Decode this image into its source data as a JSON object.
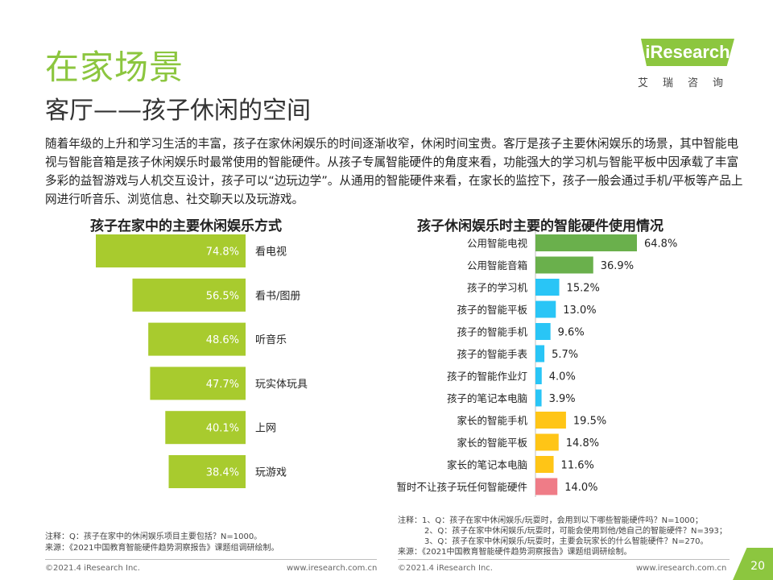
{
  "header": {
    "title": "在家场景",
    "subtitle": "客厅——孩子休闲的空间",
    "logo_text": "iResearch",
    "logo_cn": "艾瑞咨询"
  },
  "description": "随着年级的上升和学习生活的丰富，孩子在家休闲娱乐的时间逐渐收窄，休闲时间宝贵。客厅是孩子主要休闲娱乐的场景，其中智能电视与智能音箱是孩子休闲娱乐时最常使用的智能硬件。从孩子专属智能硬件的角度来看，功能强大的学习机与智能平板中因承载了丰富多彩的益智游戏与人机交互设计，孩子可以“边玩边学”。从通用的智能硬件来看，在家长的监控下，孩子一般会通过手机/平板等产品上网进行听音乐、浏览信息、社交聊天以及玩游戏。",
  "chart_data": [
    {
      "type": "bar",
      "orientation": "horizontal-funnel",
      "title": "孩子在家中的主要休闲娱乐方式",
      "categories": [
        "看电视",
        "看书/图册",
        "听音乐",
        "玩实体玩具",
        "上网",
        "玩游戏"
      ],
      "values": [
        74.8,
        56.5,
        48.6,
        47.7,
        40.1,
        38.4
      ],
      "value_labels": [
        "74.8%",
        "56.5%",
        "48.6%",
        "47.7%",
        "40.1%",
        "38.4%"
      ],
      "unit": "%",
      "color": "#a8cb2e"
    },
    {
      "type": "bar",
      "orientation": "horizontal",
      "title": "孩子休闲娱乐时主要的智能硬件使用情况",
      "categories": [
        "公用智能电视",
        "公用智能音箱",
        "孩子的学习机",
        "孩子的智能平板",
        "孩子的智能手机",
        "孩子的智能手表",
        "孩子的智能作业灯",
        "孩子的笔记本电脑",
        "家长的智能手机",
        "家长的智能平板",
        "家长的笔记本电脑",
        "暂时不让孩子玩任何智能硬件"
      ],
      "values": [
        64.8,
        36.9,
        15.2,
        13.0,
        9.6,
        5.7,
        4.0,
        3.9,
        19.5,
        14.8,
        11.6,
        14.0
      ],
      "value_labels": [
        "64.8%",
        "36.9%",
        "15.2%",
        "13.0%",
        "9.6%",
        "5.7%",
        "4.0%",
        "3.9%",
        "19.5%",
        "14.8%",
        "11.6%",
        "14.0%"
      ],
      "unit": "%",
      "colors": [
        "#6ab04c",
        "#6ab04c",
        "#29c5f6",
        "#29c5f6",
        "#29c5f6",
        "#29c5f6",
        "#29c5f6",
        "#29c5f6",
        "#ffc516",
        "#ffc516",
        "#ffc516",
        "#ef7c87"
      ]
    }
  ],
  "notes": {
    "left_note": "注释：Q：孩子在家中的休闲娱乐项目主要包括？N=1000。",
    "left_source": "来源：《2021中国教育智能硬件趋势洞察报告》课题组调研绘制。",
    "right_note_1": "注释：1、Q：孩子在家中休闲娱乐/玩耍时，会用到以下哪些智能硬件吗？N=1000；",
    "right_note_2": "2、Q：孩子在家中休闲娱乐/玩耍时，可能会使用到他/她自己的智能硬件？N=393；",
    "right_note_3": "3、Q：孩子在家中休闲娱乐/玩耍时，主要会玩家长的什么智能硬件？N=270。",
    "right_source": "来源：《2021中国教育智能硬件趋势洞察报告》课题组调研绘制。"
  },
  "footer": {
    "left_copyright": "©2021.4 iResearch Inc.",
    "left_url": "www.iresearch.com.cn",
    "right_copyright": "©2021.4 iResearch Inc.",
    "right_url": "www.iresearch.com.cn",
    "page_number": "20"
  }
}
